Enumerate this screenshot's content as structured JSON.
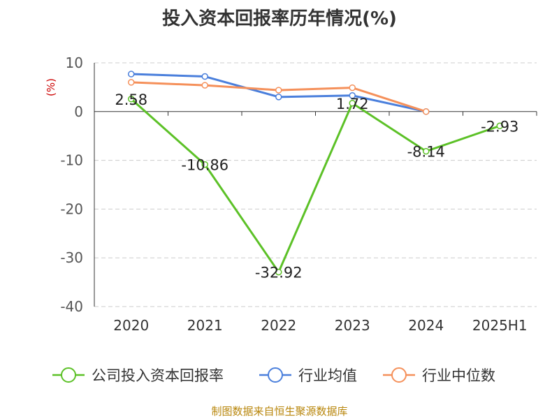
{
  "title": "投入资本回报率历年情况(%)",
  "footer": "制图数据来自恒生聚源数据库",
  "chart_data": {
    "type": "line",
    "title": "投入资本回报率历年情况(%)",
    "ylabel": "(%)",
    "xlabel": "",
    "categories": [
      "2020",
      "2021",
      "2022",
      "2023",
      "2024",
      "2025H1"
    ],
    "ylim": [
      -40,
      10
    ],
    "yticks": [
      10,
      0,
      -10,
      -20,
      -30,
      -40
    ],
    "grid": true,
    "legend_position": "bottom",
    "series": [
      {
        "name": "公司投入资本回报率",
        "color": "#5cc127",
        "values": [
          2.58,
          -10.86,
          -32.92,
          1.72,
          -8.14,
          -2.93
        ],
        "labels": [
          "2.58",
          "-10.86",
          "-32.92",
          "1.72",
          "-8.14",
          "-2.93"
        ]
      },
      {
        "name": "行业均值",
        "color": "#4a7fdc",
        "values": [
          7.7,
          7.2,
          3.0,
          3.3,
          0.0,
          null
        ]
      },
      {
        "name": "行业中位数",
        "color": "#f5905a",
        "values": [
          6.0,
          5.4,
          4.4,
          4.9,
          0.0,
          null
        ]
      }
    ]
  }
}
